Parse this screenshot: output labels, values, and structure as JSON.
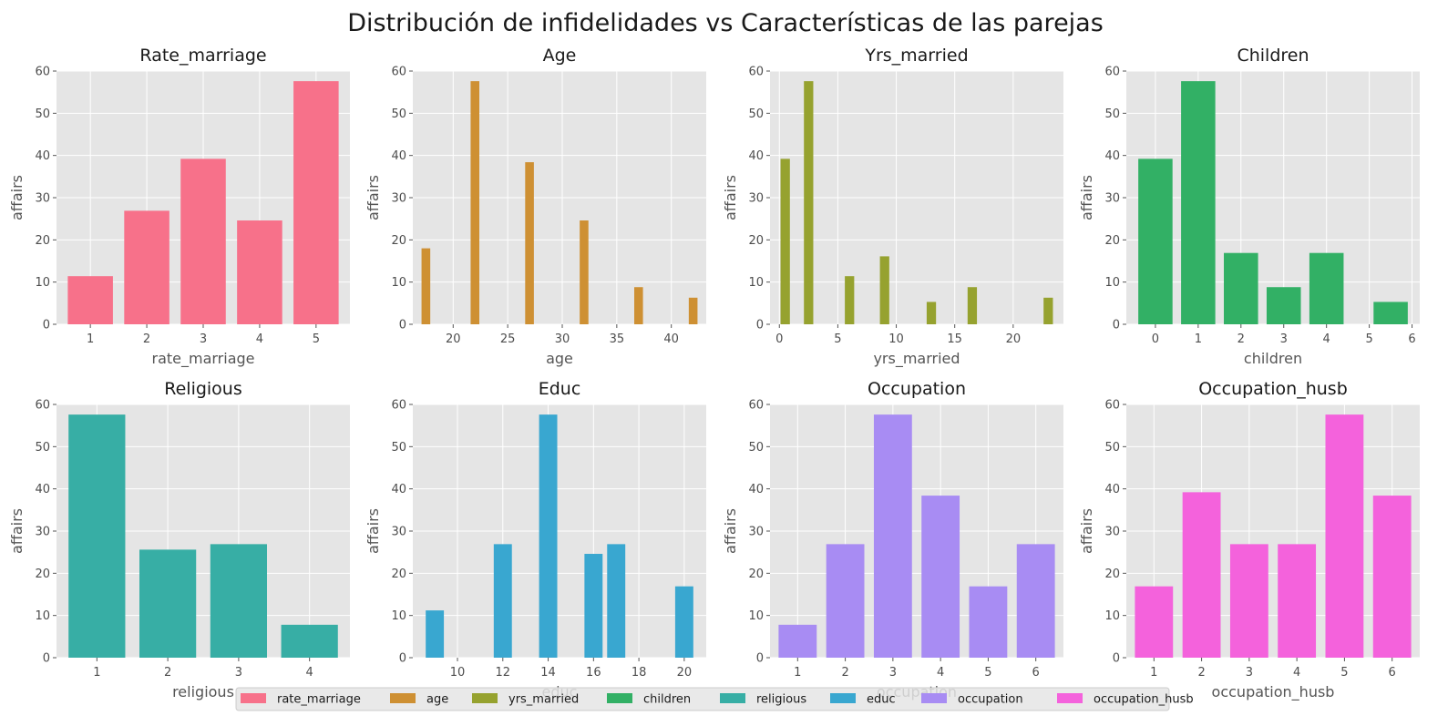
{
  "figure": {
    "title": "Distribución de infidelidades vs Características de las parejas"
  },
  "chart_data": [
    {
      "type": "bar",
      "title": "Rate_marriage",
      "xlabel": "rate_marriage",
      "ylabel": "affairs",
      "color": "#f7718a",
      "x": [
        1,
        2,
        3,
        4,
        5
      ],
      "values": [
        11.4,
        26.9,
        39.2,
        24.6,
        57.6
      ],
      "bar_width": 0.8,
      "xlim": [
        0.4,
        5.6
      ],
      "xticks": [
        1,
        2,
        3,
        4,
        5
      ],
      "ylim": [
        0,
        60
      ],
      "yticks": [
        0,
        10,
        20,
        30,
        40,
        50,
        60
      ]
    },
    {
      "type": "bar",
      "title": "Age",
      "xlabel": "age",
      "ylabel": "affairs",
      "color": "#ce9033",
      "x": [
        17.5,
        22,
        27,
        32,
        37,
        42
      ],
      "values": [
        18,
        57.6,
        38.4,
        24.6,
        8.8,
        6.3
      ],
      "bar_width": 0.8,
      "xlim": [
        16.3,
        43.2
      ],
      "xticks": [
        20,
        25,
        30,
        35,
        40
      ],
      "ylim": [
        0,
        60
      ],
      "yticks": [
        0,
        10,
        20,
        30,
        40,
        50,
        60
      ]
    },
    {
      "type": "bar",
      "title": "Yrs_married",
      "xlabel": "yrs_married",
      "ylabel": "affairs",
      "color": "#96a22f",
      "x": [
        0.5,
        2.5,
        6,
        9,
        13,
        16.5,
        23
      ],
      "values": [
        39.2,
        57.6,
        11.4,
        16.1,
        5.3,
        8.8,
        6.3
      ],
      "bar_width": 0.8,
      "xlim": [
        -0.8,
        24.3
      ],
      "xticks": [
        0,
        5,
        10,
        15,
        20
      ],
      "ylim": [
        0,
        60
      ],
      "yticks": [
        0,
        10,
        20,
        30,
        40,
        50,
        60
      ]
    },
    {
      "type": "bar",
      "title": "Children",
      "xlabel": "children",
      "ylabel": "affairs",
      "color": "#32b065",
      "x": [
        0,
        1,
        2,
        3,
        4,
        5.5
      ],
      "values": [
        39.2,
        57.6,
        16.9,
        8.8,
        16.9,
        5.3
      ],
      "bar_width": 0.8,
      "xlim": [
        -0.68,
        6.18
      ],
      "xticks": [
        0,
        1,
        2,
        3,
        4,
        5,
        6
      ],
      "ylim": [
        0,
        60
      ],
      "yticks": [
        0,
        10,
        20,
        30,
        40,
        50,
        60
      ]
    },
    {
      "type": "bar",
      "title": "Religious",
      "xlabel": "religious",
      "ylabel": "affairs",
      "color": "#37aea5",
      "x": [
        1,
        2,
        3,
        4
      ],
      "values": [
        57.6,
        25.6,
        26.9,
        7.8
      ],
      "bar_width": 0.8,
      "xlim": [
        0.43,
        4.57
      ],
      "xticks": [
        1,
        2,
        3,
        4
      ],
      "ylim": [
        0,
        60
      ],
      "yticks": [
        0,
        10,
        20,
        30,
        40,
        50,
        60
      ]
    },
    {
      "type": "bar",
      "title": "Educ",
      "xlabel": "educ",
      "ylabel": "affairs",
      "color": "#39a7d0",
      "x": [
        9,
        12,
        14,
        16,
        17,
        20
      ],
      "values": [
        11.2,
        26.9,
        57.6,
        24.6,
        26.9,
        16.9
      ],
      "bar_width": 0.8,
      "xlim": [
        8.03,
        20.97
      ],
      "xticks": [
        10,
        12,
        14,
        16,
        18,
        20
      ],
      "ylim": [
        0,
        60
      ],
      "yticks": [
        0,
        10,
        20,
        30,
        40,
        50,
        60
      ]
    },
    {
      "type": "bar",
      "title": "Occupation",
      "xlabel": "occupation",
      "ylabel": "affairs",
      "color": "#a88cf3",
      "x": [
        1,
        2,
        3,
        4,
        5,
        6
      ],
      "values": [
        7.8,
        26.9,
        57.6,
        38.4,
        16.9,
        26.9
      ],
      "bar_width": 0.8,
      "xlim": [
        0.42,
        6.58
      ],
      "xticks": [
        1,
        2,
        3,
        4,
        5,
        6
      ],
      "ylim": [
        0,
        60
      ],
      "yticks": [
        0,
        10,
        20,
        30,
        40,
        50,
        60
      ]
    },
    {
      "type": "bar",
      "title": "Occupation_husb",
      "xlabel": "occupation_husb",
      "ylabel": "affairs",
      "color": "#f462dc",
      "x": [
        1,
        2,
        3,
        4,
        5,
        6
      ],
      "values": [
        16.9,
        39.2,
        26.9,
        26.9,
        57.6,
        38.4
      ],
      "bar_width": 0.8,
      "xlim": [
        0.42,
        6.58
      ],
      "xticks": [
        1,
        2,
        3,
        4,
        5,
        6
      ],
      "ylim": [
        0,
        60
      ],
      "yticks": [
        0,
        10,
        20,
        30,
        40,
        50,
        60
      ]
    }
  ],
  "legend": {
    "placement": "bottom-center",
    "entries": [
      {
        "label": "rate_marriage",
        "color": "#f7718a"
      },
      {
        "label": "age",
        "color": "#ce9033"
      },
      {
        "label": "yrs_married",
        "color": "#96a22f"
      },
      {
        "label": "children",
        "color": "#32b065"
      },
      {
        "label": "religious",
        "color": "#37aea5"
      },
      {
        "label": "educ",
        "color": "#39a7d0"
      },
      {
        "label": "occupation",
        "color": "#a88cf3"
      },
      {
        "label": "occupation_husb",
        "color": "#f462dc"
      }
    ]
  }
}
